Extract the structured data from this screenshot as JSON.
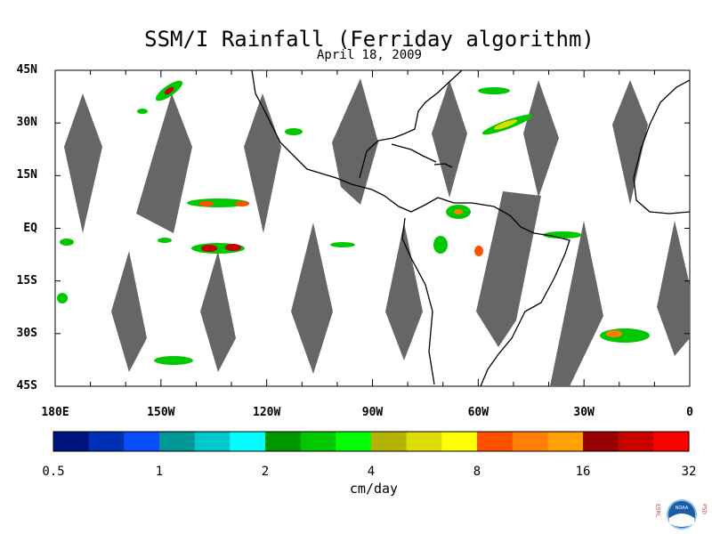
{
  "title": "SSM/I Rainfall (Ferriday algorithm)",
  "subtitle": "April 18, 2009",
  "map": {
    "lat_labels": [
      "45N",
      "30N",
      "15N",
      "EQ",
      "15S",
      "30S",
      "45S"
    ],
    "lat_values": [
      45,
      30,
      15,
      0,
      -15,
      -30,
      -45
    ],
    "lon_labels": [
      "180E",
      "150W",
      "120W",
      "90W",
      "60W",
      "30W",
      "0"
    ],
    "lon_values": [
      -180,
      -150,
      -120,
      -90,
      -60,
      -30,
      0
    ],
    "extent": {
      "lon": [
        -180,
        0
      ],
      "lat": [
        -45,
        45
      ]
    },
    "colors": {
      "swath_gap": "#666666",
      "land_outline": "#000000",
      "background": "#ffffff"
    }
  },
  "colorbar": {
    "tick_labels": [
      "0.5",
      "1",
      "2",
      "4",
      "8",
      "16",
      "32"
    ],
    "tick_values": [
      0.5,
      1,
      2,
      4,
      8,
      16,
      32
    ],
    "colors": [
      "#00137d",
      "#0031b5",
      "#0a4dff",
      "#009696",
      "#00c8c8",
      "#00ffff",
      "#009600",
      "#00c800",
      "#00ff00",
      "#b4b400",
      "#dcdc00",
      "#ffff00",
      "#ff5000",
      "#ff7d00",
      "#ffa000",
      "#960000",
      "#c80000",
      "#ff0000"
    ],
    "units": "cm/day"
  },
  "logo": {
    "left_text": "ESRL",
    "right_text": "PSD",
    "center_text": "NOAA"
  }
}
